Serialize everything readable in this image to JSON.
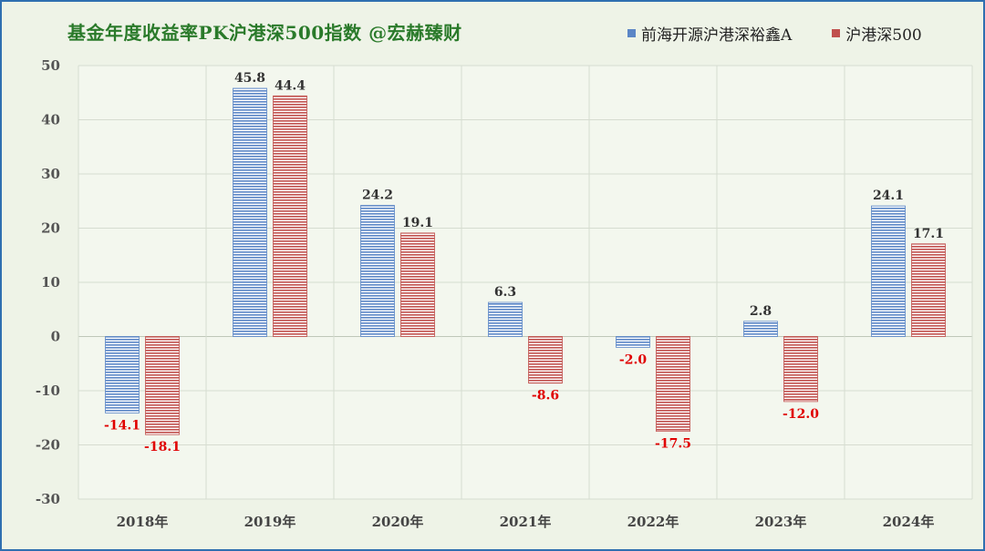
{
  "title": "基金年度收益率PK沪港深500指数  @宏赫臻财",
  "colors": {
    "series_a": "#5b86c6",
    "series_b": "#c0504d",
    "negative_label": "#e00000",
    "positive_label": "#333333",
    "title": "#2a7a2a"
  },
  "chart_data": {
    "type": "bar",
    "categories": [
      "2018年",
      "2019年",
      "2020年",
      "2021年",
      "2022年",
      "2023年",
      "2024年"
    ],
    "series": [
      {
        "name": "前海开源沪港深裕鑫A",
        "values": [
          -14.1,
          45.8,
          24.2,
          6.3,
          -2.0,
          2.8,
          24.1
        ]
      },
      {
        "name": "沪港深500",
        "values": [
          -18.1,
          44.4,
          19.1,
          -8.6,
          -17.5,
          -12.0,
          17.1
        ]
      }
    ],
    "ylim": [
      -30,
      50
    ],
    "yticks": [
      50,
      40,
      30,
      20,
      10,
      0,
      -10,
      -20,
      -30
    ],
    "grid": true,
    "legend_position": "top-right",
    "data_labels": true
  }
}
